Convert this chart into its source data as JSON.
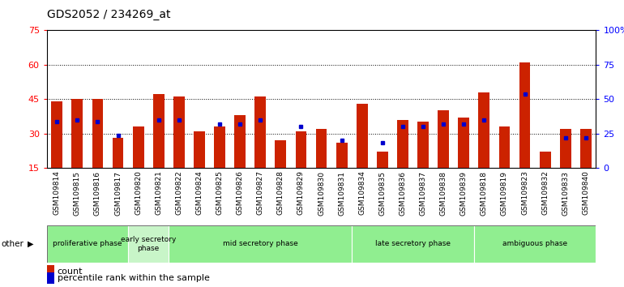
{
  "title": "GDS2052 / 234269_at",
  "samples": [
    "GSM109814",
    "GSM109815",
    "GSM109816",
    "GSM109817",
    "GSM109820",
    "GSM109821",
    "GSM109822",
    "GSM109824",
    "GSM109825",
    "GSM109826",
    "GSM109827",
    "GSM109828",
    "GSM109829",
    "GSM109830",
    "GSM109831",
    "GSM109834",
    "GSM109835",
    "GSM109836",
    "GSM109837",
    "GSM109838",
    "GSM109839",
    "GSM109818",
    "GSM109819",
    "GSM109823",
    "GSM109832",
    "GSM109833",
    "GSM109840"
  ],
  "red_values": [
    44,
    45,
    45,
    28,
    33,
    47,
    46,
    31,
    33,
    38,
    46,
    27,
    31,
    32,
    26,
    43,
    22,
    36,
    35,
    40,
    37,
    48,
    33,
    61,
    22,
    32,
    32
  ],
  "blue_values": [
    35,
    36,
    35,
    29,
    null,
    36,
    36,
    null,
    34,
    34,
    36,
    null,
    33,
    null,
    27,
    null,
    26,
    33,
    33,
    34,
    34,
    36,
    null,
    47,
    null,
    28,
    28
  ],
  "phases": [
    {
      "label": "proliferative phase",
      "start": 0,
      "end": 4,
      "color": "#90EE90"
    },
    {
      "label": "early secretory\nphase",
      "start": 4,
      "end": 6,
      "color": "#c8f5c8"
    },
    {
      "label": "mid secretory phase",
      "start": 6,
      "end": 15,
      "color": "#90EE90"
    },
    {
      "label": "late secretory phase",
      "start": 15,
      "end": 21,
      "color": "#90EE90"
    },
    {
      "label": "ambiguous phase",
      "start": 21,
      "end": 27,
      "color": "#90EE90"
    }
  ],
  "ylim_left": [
    15,
    75
  ],
  "ylim_right": [
    0,
    100
  ],
  "yticks_left": [
    15,
    30,
    45,
    60,
    75
  ],
  "yticks_right": [
    0,
    25,
    50,
    75,
    100
  ],
  "ytick_labels_right": [
    "0",
    "25",
    "50",
    "75",
    "100%"
  ],
  "bar_color": "#CC2200",
  "dot_color": "#0000CC",
  "tick_bg_color": "#C8C8C8",
  "title_fontsize": 10,
  "tick_fontsize": 6.5,
  "bar_width": 0.55,
  "grid_yticks": [
    30,
    45,
    60
  ]
}
